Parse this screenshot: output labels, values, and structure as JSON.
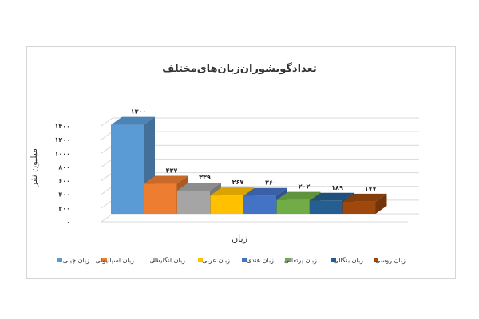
{
  "chart_data": {
    "type": "bar",
    "title": "تعدادگویشوران‌زبان‌های‌مختلف",
    "xlabel": "زبان",
    "ylabel": "میلیون نفر",
    "ylim": [
      0,
      1400
    ],
    "yticks": [
      "۰",
      "۲۰۰",
      "۴۰۰",
      "۶۰۰",
      "۸۰۰",
      "۱۰۰۰",
      "۱۲۰۰",
      "۱۴۰۰"
    ],
    "grid": true,
    "legend": "bottom",
    "categories": [
      "زبان چینی",
      "زبان اسپانیولی",
      "زبان انگلیسی",
      "زبان عربی",
      "زبان هندی",
      "زبان پرتغالی",
      "زبان بنگالی",
      "زبان روسی"
    ],
    "values": [
      1300,
      437,
      339,
      267,
      260,
      202,
      189,
      177
    ],
    "value_labels": [
      "۱۳۰۰",
      "۴۳۷",
      "۳۳۹",
      "۲۶۷",
      "۲۶۰",
      "۲۰۲",
      "۱۸۹",
      "۱۷۷"
    ],
    "colors": [
      "#5b9bd5",
      "#ed7d31",
      "#a5a5a5",
      "#ffc000",
      "#4472c4",
      "#70ad47",
      "#255e91",
      "#9e480e"
    ]
  }
}
